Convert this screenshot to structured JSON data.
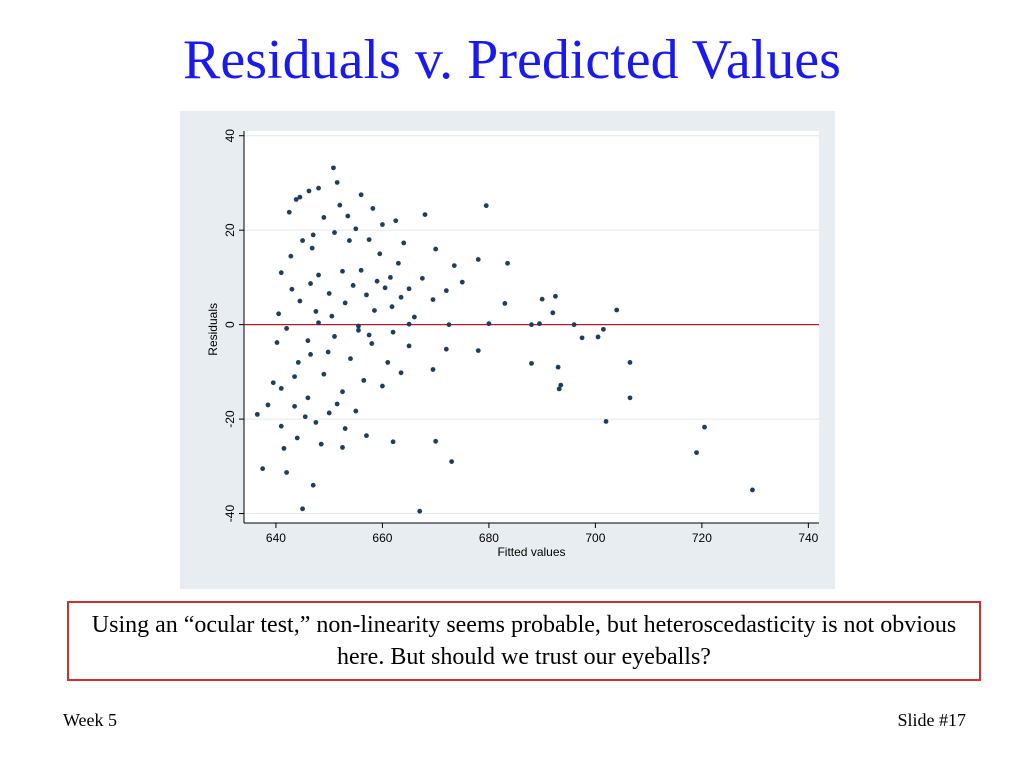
{
  "slide": {
    "title": "Residuals v. Predicted Values",
    "caption": "Using an “ocular test,” non-linearity seems probable, but heteroscedasticity is not obvious here.  But should we trust our eyeballs?",
    "footer_left": "Week 5",
    "footer_right": "Slide #17"
  },
  "colors": {
    "title": "#1a1aee",
    "point": "#1f3e5e",
    "zero_line": "#b01c2e",
    "panel_bg": "#e8edf1",
    "caption_border": "#d03030"
  },
  "chart_data": {
    "type": "scatter",
    "title": "",
    "xlabel": "Fitted values",
    "ylabel": "Residuals",
    "xlim": [
      634,
      742
    ],
    "ylim": [
      -42,
      41
    ],
    "xticks": [
      640,
      660,
      680,
      700,
      720,
      740
    ],
    "xtick_labels": [
      "640",
      "660",
      "680",
      "700",
      "720",
      "740"
    ],
    "yticks": [
      -40,
      -20,
      0,
      20,
      40
    ],
    "ytick_labels": [
      "-40",
      "-20",
      "0",
      "20",
      "40"
    ],
    "grid": true,
    "reference_line": {
      "y": 0
    },
    "points": [
      [
        650.8,
        33.2
      ],
      [
        651.5,
        30.1
      ],
      [
        646.2,
        28.3
      ],
      [
        648.0,
        28.9
      ],
      [
        644.5,
        27.0
      ],
      [
        656.0,
        27.5
      ],
      [
        642.5,
        23.8
      ],
      [
        643.8,
        26.5
      ],
      [
        652.0,
        25.3
      ],
      [
        658.2,
        24.6
      ],
      [
        668.0,
        23.3
      ],
      [
        679.5,
        25.2
      ],
      [
        653.5,
        23.0
      ],
      [
        649.0,
        22.7
      ],
      [
        660.0,
        21.2
      ],
      [
        662.5,
        22.0
      ],
      [
        655.0,
        20.3
      ],
      [
        647.0,
        19.0
      ],
      [
        651.0,
        19.5
      ],
      [
        657.5,
        18.0
      ],
      [
        664.0,
        17.3
      ],
      [
        670.0,
        16.0
      ],
      [
        645.0,
        17.8
      ],
      [
        659.5,
        15.0
      ],
      [
        663.0,
        13.0
      ],
      [
        678.0,
        13.8
      ],
      [
        683.5,
        13.0
      ],
      [
        673.5,
        12.5
      ],
      [
        656.0,
        11.5
      ],
      [
        648.0,
        10.5
      ],
      [
        641.0,
        11.0
      ],
      [
        652.5,
        11.3
      ],
      [
        661.5,
        10.0
      ],
      [
        667.5,
        9.8
      ],
      [
        675.0,
        9.0
      ],
      [
        646.5,
        8.7
      ],
      [
        654.5,
        8.3
      ],
      [
        660.5,
        7.8
      ],
      [
        665.0,
        7.6
      ],
      [
        672.0,
        7.2
      ],
      [
        643.0,
        7.5
      ],
      [
        650.0,
        6.6
      ],
      [
        657.0,
        6.3
      ],
      [
        663.5,
        5.8
      ],
      [
        669.5,
        5.3
      ],
      [
        644.5,
        5.0
      ],
      [
        653.0,
        4.6
      ],
      [
        683.0,
        4.5
      ],
      [
        690.0,
        5.4
      ],
      [
        692.5,
        6.0
      ],
      [
        704.0,
        3.1
      ],
      [
        658.5,
        3.0
      ],
      [
        647.5,
        2.8
      ],
      [
        640.5,
        2.3
      ],
      [
        650.5,
        1.8
      ],
      [
        666.0,
        1.6
      ],
      [
        692.0,
        2.5
      ],
      [
        696.0,
        0.0
      ],
      [
        689.5,
        0.2
      ],
      [
        701.5,
        -1.0
      ],
      [
        700.5,
        -2.6
      ],
      [
        697.5,
        -2.8
      ],
      [
        642.0,
        -0.8
      ],
      [
        655.5,
        -1.2
      ],
      [
        662.0,
        -1.6
      ],
      [
        651.0,
        -2.5
      ],
      [
        646.0,
        -3.4
      ],
      [
        658.0,
        -4.0
      ],
      [
        665.0,
        -4.5
      ],
      [
        672.0,
        -5.2
      ],
      [
        678.0,
        -5.5
      ],
      [
        688.0,
        -8.2
      ],
      [
        693.0,
        -9.0
      ],
      [
        706.5,
        -8.0
      ],
      [
        646.5,
        -6.3
      ],
      [
        654.0,
        -7.2
      ],
      [
        661.0,
        -8.0
      ],
      [
        669.5,
        -9.5
      ],
      [
        649.0,
        -10.5
      ],
      [
        643.5,
        -11.0
      ],
      [
        656.5,
        -11.8
      ],
      [
        663.5,
        -10.2
      ],
      [
        693.5,
        -12.8
      ],
      [
        693.2,
        -13.6
      ],
      [
        641.0,
        -13.5
      ],
      [
        652.5,
        -14.2
      ],
      [
        660.0,
        -13.0
      ],
      [
        646.0,
        -15.5
      ],
      [
        706.5,
        -15.5
      ],
      [
        651.5,
        -16.8
      ],
      [
        643.5,
        -17.3
      ],
      [
        638.5,
        -17.0
      ],
      [
        650.0,
        -18.7
      ],
      [
        636.5,
        -19.0
      ],
      [
        645.5,
        -19.5
      ],
      [
        655.0,
        -18.3
      ],
      [
        702.0,
        -20.5
      ],
      [
        647.5,
        -20.7
      ],
      [
        641.0,
        -21.5
      ],
      [
        653.0,
        -22.0
      ],
      [
        720.5,
        -21.7
      ],
      [
        657.0,
        -23.5
      ],
      [
        644.0,
        -24.0
      ],
      [
        662.0,
        -24.8
      ],
      [
        670.0,
        -24.7
      ],
      [
        641.5,
        -26.2
      ],
      [
        648.5,
        -25.3
      ],
      [
        652.5,
        -26.0
      ],
      [
        719.0,
        -27.1
      ],
      [
        673.0,
        -29.0
      ],
      [
        637.5,
        -30.5
      ],
      [
        642.0,
        -31.3
      ],
      [
        647.0,
        -34.0
      ],
      [
        729.5,
        -35.0
      ],
      [
        645.0,
        -39.0
      ],
      [
        667.0,
        -39.5
      ],
      [
        665.0,
        0.1
      ],
      [
        672.5,
        0.0
      ],
      [
        680.0,
        0.2
      ],
      [
        688.0,
        0.0
      ],
      [
        648.0,
        0.4
      ],
      [
        655.5,
        -0.3
      ],
      [
        642.8,
        14.5
      ],
      [
        646.8,
        16.2
      ],
      [
        653.8,
        17.8
      ],
      [
        659.0,
        9.2
      ],
      [
        649.8,
        -5.8
      ],
      [
        644.2,
        -8.0
      ],
      [
        657.5,
        -2.2
      ],
      [
        640.2,
        -3.8
      ],
      [
        661.8,
        3.8
      ],
      [
        639.5,
        -12.3
      ]
    ]
  }
}
